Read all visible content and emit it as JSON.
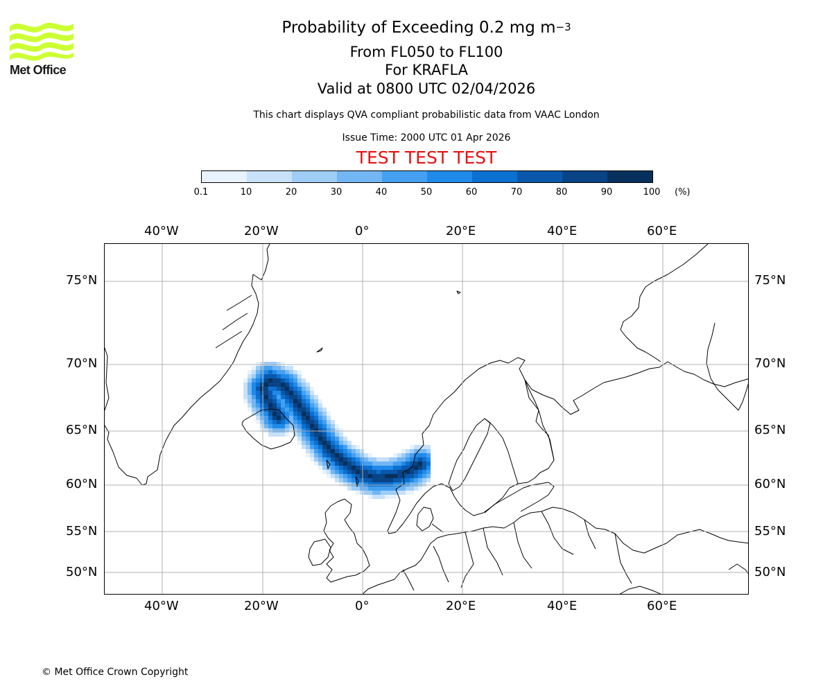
{
  "header": {
    "title_prefix": "Probability of Exceeding 0.2 mg m",
    "title_exponent": "−3",
    "level_line": "From FL050 to FL100",
    "volcano_line": "For KRAFLA",
    "valid_line": "Valid at 0800 UTC 02/04/2026",
    "note": "This chart displays QVA compliant probabilistic data from VAAC London",
    "issue_time": "Issue Time: 2000 UTC 01 Apr 2026",
    "test_banner": "TEST TEST TEST"
  },
  "logo": {
    "text": "Met Office",
    "color": "#ccff33"
  },
  "colorbar": {
    "labels": [
      "0.1",
      "10",
      "20",
      "30",
      "40",
      "50",
      "60",
      "70",
      "80",
      "90",
      "100"
    ],
    "colors": [
      "#e8f3fd",
      "#c7e1f9",
      "#9ecdf6",
      "#72b6f3",
      "#45a0f1",
      "#1f8ae9",
      "#0c70d0",
      "#0a58ab",
      "#084486",
      "#07305d"
    ],
    "units": "(%)"
  },
  "map": {
    "lon_labels": [
      "40°W",
      "20°W",
      "0°",
      "20°E",
      "40°E",
      "60°E"
    ],
    "lat_labels": [
      "75°N",
      "70°N",
      "65°N",
      "60°N",
      "55°N",
      "50°N"
    ],
    "gridline_color": "#b0b0b0",
    "coastline_color": "#000000"
  },
  "footer": {
    "copyright": "© Met Office Crown Copyright"
  }
}
